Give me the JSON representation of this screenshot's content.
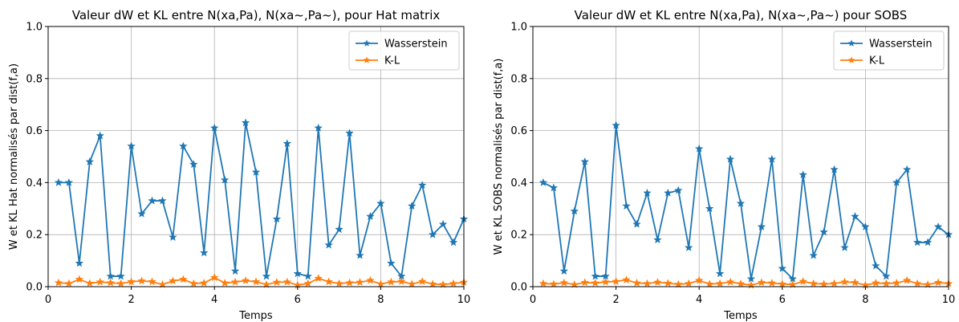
{
  "chart_data": [
    {
      "type": "line",
      "title": "Valeur dW et KL entre N(xa,Pa), N(xa~,Pa~), pour Hat matrix",
      "xlabel": "Temps",
      "ylabel": "W et KL Hat normalisés par dist(f,a)",
      "xlim": [
        0,
        10
      ],
      "ylim": [
        0,
        1.0
      ],
      "xticks": [
        "0",
        "2",
        "4",
        "6",
        "8",
        "10"
      ],
      "yticks": [
        "0.0",
        "0.2",
        "0.4",
        "0.6",
        "0.8",
        "1.0"
      ],
      "grid": true,
      "legend": "top-right",
      "x": [
        0.25,
        0.5,
        0.75,
        1.0,
        1.25,
        1.5,
        1.75,
        2.0,
        2.25,
        2.5,
        2.75,
        3.0,
        3.25,
        3.5,
        3.75,
        4.0,
        4.25,
        4.5,
        4.75,
        5.0,
        5.25,
        5.5,
        5.75,
        6.0,
        6.25,
        6.5,
        6.75,
        7.0,
        7.25,
        7.5,
        7.75,
        8.0,
        8.25,
        8.5,
        8.75,
        9.0,
        9.25,
        9.5,
        9.75,
        10.0
      ],
      "series": [
        {
          "name": "Wasserstein",
          "color": "#1f77b4",
          "values": [
            0.4,
            0.4,
            0.09,
            0.48,
            0.58,
            0.04,
            0.04,
            0.54,
            0.28,
            0.33,
            0.33,
            0.19,
            0.54,
            0.47,
            0.13,
            0.61,
            0.41,
            0.06,
            0.63,
            0.44,
            0.04,
            0.26,
            0.55,
            0.05,
            0.04,
            0.61,
            0.16,
            0.22,
            0.59,
            0.12,
            0.27,
            0.32,
            0.09,
            0.04,
            0.31,
            0.39,
            0.2,
            0.24,
            0.17,
            0.26
          ]
        },
        {
          "name": "K-L",
          "color": "#ff7f0e",
          "values": [
            0.015,
            0.012,
            0.028,
            0.013,
            0.018,
            0.015,
            0.012,
            0.019,
            0.022,
            0.019,
            0.008,
            0.022,
            0.028,
            0.012,
            0.014,
            0.035,
            0.014,
            0.018,
            0.023,
            0.019,
            0.008,
            0.017,
            0.018,
            0.006,
            0.012,
            0.032,
            0.019,
            0.012,
            0.015,
            0.017,
            0.024,
            0.01,
            0.018,
            0.02,
            0.01,
            0.02,
            0.01,
            0.008,
            0.012,
            0.017
          ]
        }
      ]
    },
    {
      "type": "line",
      "title": "Valeur dW et KL entre N(xa,Pa), N(xa~,Pa~) pour SOBS",
      "xlabel": "Temps",
      "ylabel": "W et KL SOBS normalisés par dist(f,a)",
      "xlim": [
        0,
        10
      ],
      "ylim": [
        0,
        1.0
      ],
      "xticks": [
        "0",
        "2",
        "4",
        "6",
        "8",
        "10"
      ],
      "yticks": [
        "0.0",
        "0.2",
        "0.4",
        "0.6",
        "0.8",
        "1.0"
      ],
      "grid": true,
      "legend": "top-right",
      "x": [
        0.25,
        0.5,
        0.75,
        1.0,
        1.25,
        1.5,
        1.75,
        2.0,
        2.25,
        2.5,
        2.75,
        3.0,
        3.25,
        3.5,
        3.75,
        4.0,
        4.25,
        4.5,
        4.75,
        5.0,
        5.25,
        5.5,
        5.75,
        6.0,
        6.25,
        6.5,
        6.75,
        7.0,
        7.25,
        7.5,
        7.75,
        8.0,
        8.25,
        8.5,
        8.75,
        9.0,
        9.25,
        9.5,
        9.75,
        10.0
      ],
      "series": [
        {
          "name": "Wasserstein",
          "color": "#1f77b4",
          "values": [
            0.4,
            0.38,
            0.06,
            0.29,
            0.48,
            0.04,
            0.04,
            0.62,
            0.31,
            0.24,
            0.36,
            0.18,
            0.36,
            0.37,
            0.15,
            0.53,
            0.3,
            0.05,
            0.49,
            0.32,
            0.03,
            0.23,
            0.49,
            0.07,
            0.03,
            0.43,
            0.12,
            0.21,
            0.45,
            0.15,
            0.27,
            0.23,
            0.08,
            0.04,
            0.4,
            0.45,
            0.17,
            0.17,
            0.23,
            0.2
          ]
        },
        {
          "name": "K-L",
          "color": "#ff7f0e",
          "values": [
            0.012,
            0.01,
            0.015,
            0.008,
            0.016,
            0.014,
            0.018,
            0.02,
            0.026,
            0.014,
            0.012,
            0.017,
            0.013,
            0.009,
            0.012,
            0.024,
            0.01,
            0.012,
            0.018,
            0.011,
            0.006,
            0.016,
            0.014,
            0.01,
            0.008,
            0.02,
            0.012,
            0.01,
            0.012,
            0.018,
            0.016,
            0.006,
            0.014,
            0.012,
            0.014,
            0.024,
            0.012,
            0.008,
            0.016,
            0.012
          ]
        }
      ]
    }
  ]
}
